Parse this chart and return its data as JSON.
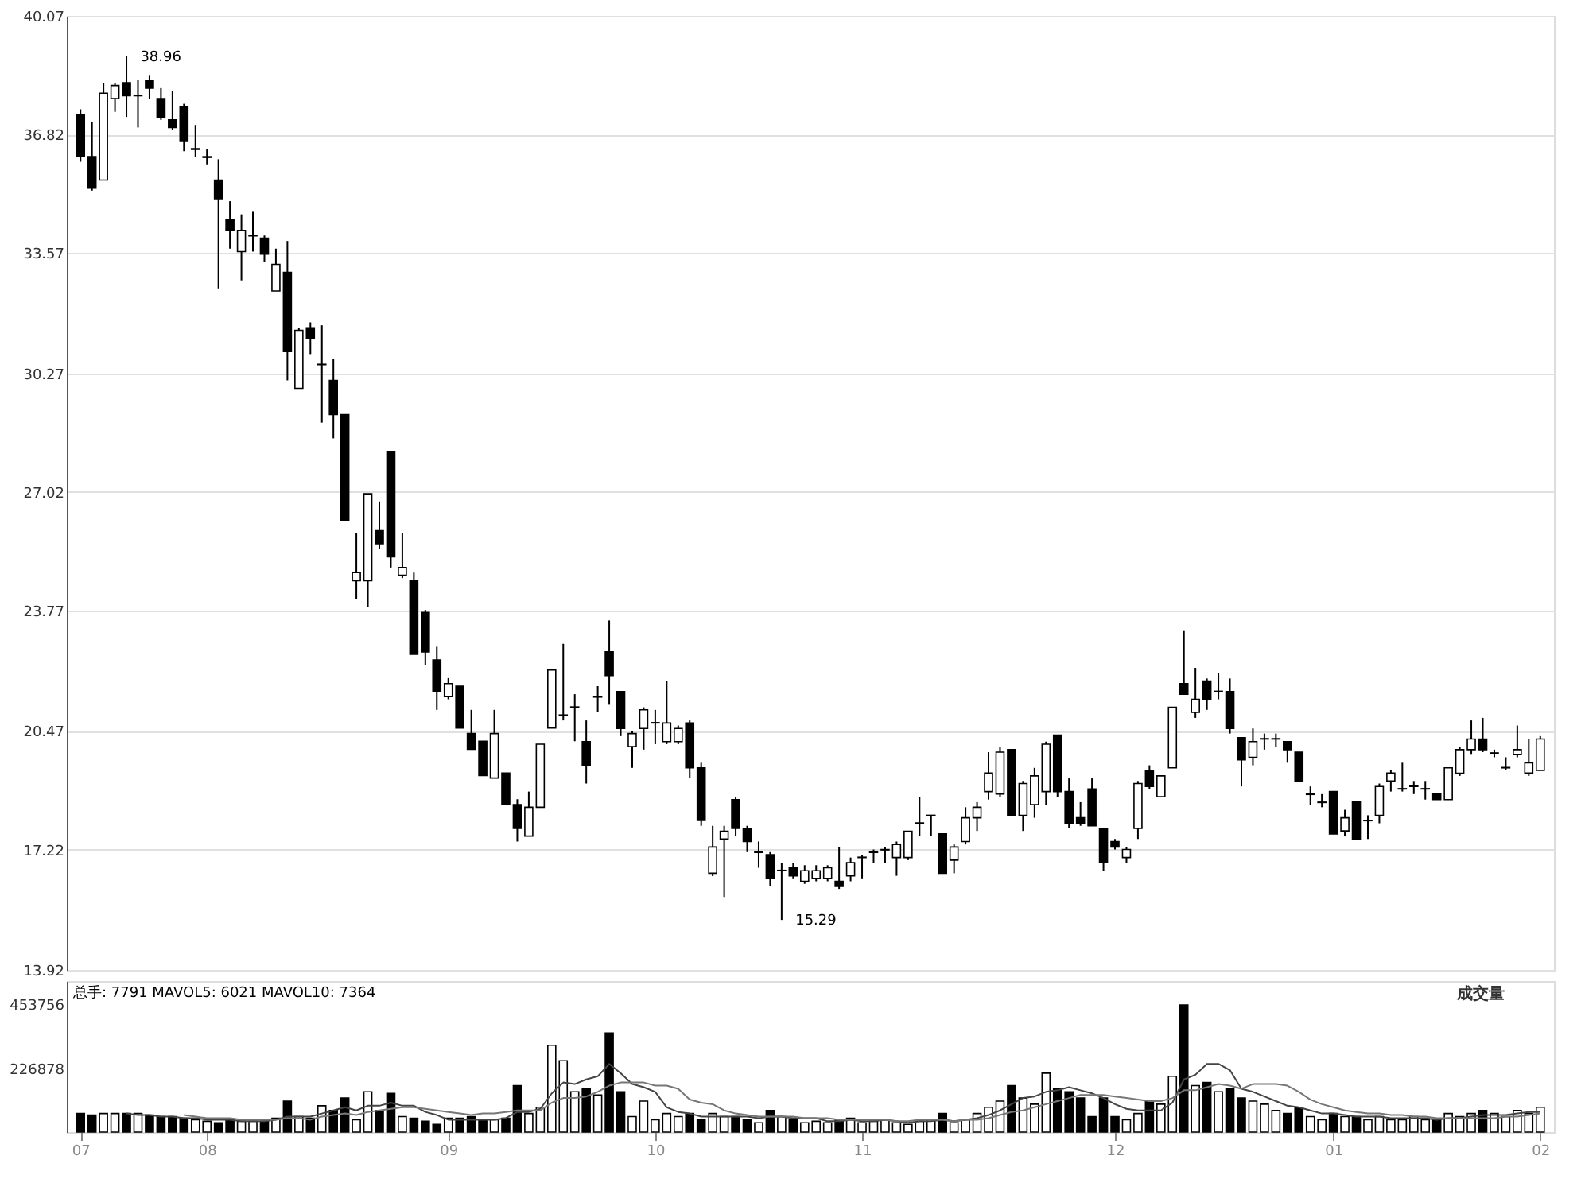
{
  "chart_data": [
    {
      "type": "candlestick",
      "categories": [
        "07",
        null,
        null,
        null,
        null,
        null,
        null,
        null,
        null,
        null,
        null,
        "08",
        null,
        null,
        null,
        null,
        null,
        null,
        null,
        null,
        null,
        null,
        null,
        null,
        null,
        null,
        null,
        null,
        null,
        null,
        null,
        null,
        "09",
        null,
        null,
        null,
        null,
        null,
        null,
        null,
        null,
        null,
        null,
        null,
        null,
        null,
        null,
        null,
        null,
        null,
        "10",
        null,
        null,
        null,
        null,
        null,
        null,
        null,
        null,
        null,
        null,
        null,
        null,
        null,
        null,
        null,
        null,
        null,
        "11",
        null,
        null,
        null,
        null,
        null,
        null,
        null,
        null,
        null,
        null,
        null,
        null,
        null,
        null,
        null,
        null,
        null,
        null,
        null,
        null,
        null,
        "12",
        null,
        null,
        null,
        null,
        null,
        null,
        null,
        null,
        null,
        null,
        null,
        null,
        null,
        null,
        null,
        null,
        null,
        null,
        "01",
        null,
        null,
        null,
        null,
        null,
        null,
        null,
        null,
        null,
        null,
        null,
        null,
        null,
        null,
        null,
        null,
        null,
        "02"
      ],
      "ohlc": [
        [
          37.37,
          37.51,
          36.07,
          36.21
        ],
        [
          36.21,
          37.15,
          35.28,
          35.35
        ],
        [
          35.57,
          38.24,
          35.57,
          37.95
        ],
        [
          37.8,
          38.24,
          37.44,
          38.16
        ],
        [
          38.24,
          38.96,
          37.3,
          37.88
        ],
        [
          37.88,
          38.31,
          37.01,
          37.89
        ],
        [
          38.31,
          38.45,
          37.8,
          38.09
        ],
        [
          37.8,
          38.09,
          37.22,
          37.3
        ],
        [
          37.22,
          38.02,
          36.94,
          37.01
        ],
        [
          37.59,
          37.66,
          36.36,
          36.65
        ],
        [
          36.41,
          37.08,
          36.21,
          36.43
        ],
        [
          36.19,
          36.43,
          36.0,
          36.21
        ],
        [
          35.57,
          36.14,
          32.6,
          35.06
        ],
        [
          34.48,
          34.99,
          33.69,
          34.19
        ],
        [
          33.61,
          34.63,
          32.82,
          34.19
        ],
        [
          34.04,
          34.7,
          33.61,
          34.05
        ],
        [
          33.98,
          34.05,
          33.33,
          33.54
        ],
        [
          32.53,
          33.69,
          32.53,
          33.26
        ],
        [
          33.04,
          33.9,
          30.08,
          30.87
        ],
        [
          29.86,
          31.52,
          29.86,
          31.45
        ],
        [
          31.52,
          31.67,
          30.8,
          31.23
        ],
        [
          30.51,
          31.59,
          28.92,
          30.52
        ],
        [
          30.08,
          30.66,
          28.49,
          29.14
        ],
        [
          29.14,
          29.14,
          26.25,
          26.25
        ],
        [
          24.59,
          25.89,
          24.09,
          24.81
        ],
        [
          24.59,
          26.97,
          23.87,
          26.97
        ],
        [
          25.96,
          26.76,
          25.46,
          25.6
        ],
        [
          28.13,
          28.13,
          24.95,
          25.24
        ],
        [
          24.74,
          25.89,
          24.66,
          24.95
        ],
        [
          24.59,
          24.81,
          22.57,
          22.57
        ],
        [
          23.72,
          23.79,
          22.28,
          22.64
        ],
        [
          22.42,
          22.78,
          21.05,
          21.56
        ],
        [
          21.41,
          21.92,
          21.34,
          21.77
        ],
        [
          21.7,
          21.7,
          20.55,
          20.55
        ],
        [
          20.4,
          21.05,
          19.97,
          19.97
        ],
        [
          20.19,
          20.19,
          19.25,
          19.25
        ],
        [
          19.18,
          21.05,
          19.18,
          20.4
        ],
        [
          19.32,
          19.32,
          18.45,
          18.45
        ],
        [
          18.45,
          18.6,
          17.44,
          17.8
        ],
        [
          17.59,
          18.81,
          17.59,
          18.38
        ],
        [
          18.38,
          20.11,
          18.38,
          20.11
        ],
        [
          20.55,
          22.14,
          20.55,
          22.14
        ],
        [
          20.9,
          22.86,
          20.76,
          20.91
        ],
        [
          21.12,
          21.48,
          20.19,
          21.13
        ],
        [
          20.18,
          20.76,
          19.03,
          19.53
        ],
        [
          21.4,
          21.7,
          20.98,
          21.41
        ],
        [
          22.64,
          23.5,
          21.19,
          21.99
        ],
        [
          21.55,
          21.55,
          20.33,
          20.54
        ],
        [
          20.04,
          20.47,
          19.46,
          20.4
        ],
        [
          20.54,
          21.12,
          19.96,
          21.05
        ],
        [
          20.69,
          21.05,
          20.11,
          20.7
        ],
        [
          20.18,
          21.84,
          20.11,
          20.69
        ],
        [
          20.18,
          20.62,
          20.11,
          20.54
        ],
        [
          20.69,
          20.76,
          19.17,
          19.46
        ],
        [
          19.46,
          19.6,
          17.87,
          18.02
        ],
        [
          16.57,
          17.87,
          16.49,
          17.29
        ],
        [
          17.51,
          17.87,
          15.92,
          17.72
        ],
        [
          18.59,
          18.67,
          17.58,
          17.8
        ],
        [
          17.8,
          17.87,
          17.15,
          17.44
        ],
        [
          17.14,
          17.44,
          16.72,
          17.15
        ],
        [
          17.08,
          17.15,
          16.21,
          16.43
        ],
        [
          16.64,
          16.86,
          15.29,
          16.65
        ],
        [
          16.72,
          16.86,
          16.43,
          16.5
        ],
        [
          16.35,
          16.79,
          16.28,
          16.64
        ],
        [
          16.43,
          16.79,
          16.35,
          16.64
        ],
        [
          16.43,
          16.79,
          16.35,
          16.72
        ],
        [
          16.35,
          17.29,
          16.14,
          16.21
        ],
        [
          16.5,
          17.0,
          16.35,
          16.86
        ],
        [
          17.0,
          17.08,
          16.43,
          17.01
        ],
        [
          17.14,
          17.22,
          16.86,
          17.15
        ],
        [
          17.21,
          17.29,
          16.86,
          17.22
        ],
        [
          17.0,
          17.44,
          16.5,
          17.36
        ],
        [
          17.0,
          17.72,
          16.93,
          17.72
        ],
        [
          17.94,
          18.67,
          17.58,
          17.95
        ],
        [
          18.15,
          18.16,
          17.58,
          18.16
        ],
        [
          17.65,
          17.65,
          16.57,
          16.57
        ],
        [
          16.93,
          17.36,
          16.57,
          17.29
        ],
        [
          17.44,
          18.38,
          17.36,
          18.09
        ],
        [
          18.09,
          18.52,
          17.73,
          18.38
        ],
        [
          18.81,
          19.89,
          18.59,
          19.32
        ],
        [
          18.74,
          20.04,
          18.67,
          19.89
        ],
        [
          19.96,
          19.96,
          18.16,
          18.16
        ],
        [
          18.16,
          19.1,
          17.73,
          19.03
        ],
        [
          18.45,
          19.46,
          18.09,
          19.24
        ],
        [
          18.81,
          20.18,
          18.45,
          20.11
        ],
        [
          20.36,
          20.36,
          18.67,
          18.81
        ],
        [
          18.81,
          19.17,
          17.8,
          17.94
        ],
        [
          18.09,
          18.52,
          17.87,
          17.94
        ],
        [
          18.88,
          19.17,
          17.87,
          17.87
        ],
        [
          17.8,
          17.8,
          16.64,
          16.86
        ],
        [
          17.44,
          17.51,
          17.22,
          17.29
        ],
        [
          17.0,
          17.29,
          16.86,
          17.22
        ],
        [
          17.8,
          19.1,
          17.51,
          19.03
        ],
        [
          19.39,
          19.53,
          18.88,
          18.95
        ],
        [
          18.67,
          19.24,
          18.67,
          19.24
        ],
        [
          19.46,
          21.12,
          19.46,
          21.12
        ],
        [
          21.77,
          23.21,
          21.48,
          21.48
        ],
        [
          20.98,
          22.2,
          20.83,
          21.34
        ],
        [
          21.84,
          21.91,
          21.05,
          21.34
        ],
        [
          21.55,
          22.06,
          21.34,
          21.56
        ],
        [
          21.55,
          21.91,
          20.4,
          20.54
        ],
        [
          20.29,
          20.29,
          18.95,
          19.68
        ],
        [
          19.75,
          20.54,
          19.53,
          20.18
        ],
        [
          20.25,
          20.4,
          19.96,
          20.26
        ],
        [
          20.25,
          20.4,
          20.04,
          20.26
        ],
        [
          20.18,
          20.18,
          19.6,
          19.96
        ],
        [
          19.89,
          19.89,
          19.1,
          19.1
        ],
        [
          18.73,
          18.95,
          18.45,
          18.74
        ],
        [
          18.51,
          18.74,
          18.38,
          18.52
        ],
        [
          18.81,
          18.81,
          17.65,
          17.65
        ],
        [
          17.73,
          18.31,
          17.58,
          18.09
        ],
        [
          18.52,
          18.52,
          17.51,
          17.51
        ],
        [
          18.01,
          18.16,
          17.51,
          18.02
        ],
        [
          18.16,
          19.03,
          17.94,
          18.95
        ],
        [
          19.1,
          19.39,
          18.81,
          19.32
        ],
        [
          18.88,
          19.6,
          18.81,
          18.89
        ],
        [
          18.95,
          19.1,
          18.74,
          18.96
        ],
        [
          18.88,
          19.1,
          18.59,
          18.89
        ],
        [
          18.74,
          18.74,
          18.59,
          18.59
        ],
        [
          18.59,
          19.46,
          18.59,
          19.46
        ],
        [
          19.31,
          20.04,
          19.24,
          19.96
        ],
        [
          19.96,
          20.76,
          19.82,
          20.25
        ],
        [
          20.25,
          20.83,
          19.89,
          19.96
        ],
        [
          19.86,
          19.96,
          19.75,
          19.87
        ],
        [
          19.46,
          19.75,
          19.39,
          19.47
        ],
        [
          19.82,
          20.62,
          19.75,
          19.96
        ],
        [
          19.32,
          20.25,
          19.24,
          19.6
        ],
        [
          19.39,
          20.33,
          19.39,
          20.25
        ]
      ],
      "ylim": [
        13.92,
        40.07
      ],
      "yticks": [
        13.92,
        17.22,
        20.47,
        23.77,
        27.02,
        30.27,
        33.57,
        36.82,
        40.07
      ],
      "grid": "y",
      "tick_labels": "y",
      "annotations": [
        "38.96",
        "15.29"
      ]
    },
    {
      "type": "bar",
      "categories": [
        "07",
        null,
        null,
        null,
        null,
        null,
        null,
        null,
        null,
        null,
        null,
        "08",
        null,
        null,
        null,
        null,
        null,
        null,
        null,
        null,
        null,
        null,
        null,
        null,
        null,
        null,
        null,
        null,
        null,
        null,
        null,
        null,
        "09",
        null,
        null,
        null,
        null,
        null,
        null,
        null,
        null,
        null,
        null,
        null,
        null,
        null,
        null,
        null,
        null,
        null,
        "10",
        null,
        null,
        null,
        null,
        null,
        null,
        null,
        null,
        null,
        null,
        null,
        null,
        null,
        null,
        null,
        null,
        null,
        "11",
        null,
        null,
        null,
        null,
        null,
        null,
        null,
        null,
        null,
        null,
        null,
        null,
        null,
        null,
        null,
        null,
        null,
        null,
        null,
        null,
        null,
        "12",
        null,
        null,
        null,
        null,
        null,
        null,
        null,
        null,
        null,
        null,
        null,
        null,
        null,
        null,
        null,
        null,
        null,
        null,
        "01",
        null,
        null,
        null,
        null,
        null,
        null,
        null,
        null,
        null,
        null,
        null,
        null,
        null,
        null,
        null,
        null,
        null,
        "02"
      ],
      "series": [
        {
          "values": [
            66000,
            60500,
            66000,
            66000,
            66000,
            66000,
            60500,
            55000,
            55000,
            49500,
            44000,
            38500,
            33000,
            44000,
            38500,
            38500,
            38500,
            49500,
            110000,
            55000,
            49500,
            93500,
            77000,
            121000,
            44000,
            143000,
            77000,
            137500,
            55000,
            49500,
            38500,
            27500,
            49500,
            49500,
            55000,
            44000,
            44000,
            49500,
            165000,
            66000,
            88000,
            308000,
            253000,
            143000,
            154000,
            132000,
            352000,
            143000,
            55000,
            110000,
            44000,
            66000,
            55000,
            66000,
            44000,
            66000,
            55000,
            55000,
            44000,
            33000,
            77000,
            55000,
            44000,
            33000,
            38500,
            33000,
            44000,
            49500,
            33000,
            38500,
            44000,
            33000,
            27500,
            38500,
            44000,
            66000,
            33000,
            44000,
            66000,
            88000,
            110000,
            165000,
            121000,
            99000,
            209000,
            154000,
            143000,
            121000,
            55000,
            121000,
            55000,
            44000,
            66000,
            110000,
            99000,
            198000,
            451000,
            165000,
            176000,
            143000,
            154000,
            121000,
            110000,
            99000,
            77000,
            66000,
            88000,
            55000,
            44000,
            66000,
            55000,
            55000,
            44000,
            55000,
            44000,
            44000,
            55000,
            44000,
            44000,
            66000,
            55000,
            66000,
            77000,
            66000,
            55000,
            77000,
            66000,
            88000
          ],
          "colors": [
            "#000000",
            "#000000",
            "#ffffff",
            "#ffffff",
            "#000000",
            "#ffffff",
            "#000000",
            "#000000",
            "#000000",
            "#000000",
            "#ffffff",
            "#ffffff",
            "#000000",
            "#000000",
            "#ffffff",
            "#ffffff",
            "#000000",
            "#ffffff",
            "#000000",
            "#ffffff",
            "#000000",
            "#ffffff",
            "#000000",
            "#000000",
            "#ffffff",
            "#ffffff",
            "#000000",
            "#000000",
            "#ffffff",
            "#000000",
            "#000000",
            "#000000",
            "#ffffff",
            "#000000",
            "#000000",
            "#000000",
            "#ffffff",
            "#000000",
            "#000000",
            "#ffffff",
            "#ffffff",
            "#ffffff",
            "#ffffff",
            "#ffffff",
            "#000000",
            "#ffffff",
            "#000000",
            "#000000",
            "#ffffff",
            "#ffffff",
            "#ffffff",
            "#ffffff",
            "#ffffff",
            "#000000",
            "#000000",
            "#ffffff",
            "#ffffff",
            "#000000",
            "#000000",
            "#ffffff",
            "#000000",
            "#ffffff",
            "#000000",
            "#ffffff",
            "#ffffff",
            "#ffffff",
            "#000000",
            "#ffffff",
            "#ffffff",
            "#ffffff",
            "#ffffff",
            "#ffffff",
            "#ffffff",
            "#ffffff",
            "#ffffff",
            "#000000",
            "#ffffff",
            "#ffffff",
            "#ffffff",
            "#ffffff",
            "#ffffff",
            "#000000",
            "#ffffff",
            "#ffffff",
            "#ffffff",
            "#000000",
            "#000000",
            "#000000",
            "#000000",
            "#000000",
            "#000000",
            "#ffffff",
            "#ffffff",
            "#000000",
            "#ffffff",
            "#ffffff",
            "#000000",
            "#ffffff",
            "#000000",
            "#ffffff",
            "#000000",
            "#000000",
            "#ffffff",
            "#ffffff",
            "#ffffff",
            "#000000",
            "#000000",
            "#ffffff",
            "#ffffff",
            "#000000",
            "#ffffff",
            "#000000",
            "#ffffff",
            "#ffffff",
            "#ffffff",
            "#ffffff",
            "#ffffff",
            "#ffffff",
            "#000000",
            "#ffffff",
            "#ffffff",
            "#ffffff",
            "#000000",
            "#ffffff",
            "#ffffff",
            "#ffffff",
            "#ffffff",
            "#ffffff"
          ]
        },
        {
          "type": "line",
          "color": "#444444",
          "values": [
            null,
            null,
            null,
            null,
            66000,
            60500,
            60500,
            55000,
            55000,
            49500,
            49500,
            44000,
            44000,
            44000,
            38500,
            38500,
            38500,
            44000,
            55000,
            55000,
            55000,
            66000,
            77000,
            88000,
            77000,
            93500,
            93500,
            104500,
            93500,
            93500,
            71500,
            60500,
            44000,
            44000,
            44000,
            44000,
            44000,
            49500,
            71500,
            71500,
            82500,
            137500,
            176000,
            170500,
            187000,
            198000,
            242000,
            209000,
            170500,
            159500,
            143000,
            88000,
            71500,
            66000,
            55000,
            55000,
            55000,
            55000,
            55000,
            49500,
            55000,
            55000,
            49500,
            49500,
            49500,
            38500,
            38500,
            44000,
            38500,
            38500,
            44000,
            38500,
            33000,
            38500,
            38500,
            44000,
            38500,
            44000,
            49500,
            60500,
            77000,
            99000,
            121000,
            126500,
            143000,
            148500,
            159500,
            148500,
            137500,
            121000,
            99000,
            82500,
            77000,
            77000,
            77000,
            104500,
            187000,
            203500,
            242000,
            242000,
            220000,
            154000,
            143000,
            126500,
            110000,
            93500,
            88000,
            77000,
            66000,
            66000,
            60500,
            55000,
            55000,
            55000,
            49500,
            49500,
            49500,
            49500,
            44000,
            49500,
            49500,
            55000,
            60500,
            60500,
            60500,
            66000,
            71500,
            71500
          ]
        },
        {
          "type": "line",
          "color": "#777777",
          "values": [
            null,
            null,
            null,
            null,
            null,
            null,
            null,
            null,
            null,
            60500,
            55000,
            49500,
            49500,
            49500,
            44000,
            44000,
            44000,
            44000,
            49500,
            49500,
            44000,
            55000,
            60500,
            66000,
            60500,
            71500,
            77000,
            82500,
            88000,
            88000,
            82500,
            77000,
            71500,
            66000,
            60500,
            66000,
            66000,
            71500,
            77000,
            77000,
            77000,
            104500,
            121000,
            121000,
            126500,
            143000,
            165000,
            176000,
            176000,
            176000,
            165000,
            165000,
            154000,
            115500,
            104500,
            99000,
            77000,
            66000,
            60500,
            55000,
            55000,
            55000,
            55000,
            49500,
            49500,
            49500,
            44000,
            44000,
            44000,
            44000,
            44000,
            38500,
            38500,
            44000,
            44000,
            44000,
            38500,
            44000,
            44000,
            49500,
            60500,
            71500,
            77000,
            88000,
            99000,
            110000,
            121000,
            132000,
            132000,
            132000,
            126500,
            121000,
            115500,
            110000,
            110000,
            121000,
            148500,
            148500,
            159500,
            170500,
            165000,
            154000,
            170500,
            170500,
            170500,
            165000,
            143000,
            115500,
            99000,
            88000,
            77000,
            71500,
            66000,
            66000,
            60500,
            60500,
            55000,
            55000,
            49500,
            49500,
            49500,
            49500,
            49500,
            49500,
            55000,
            55000,
            60500,
            66000
          ]
        }
      ],
      "ylim": [
        0,
        536000
      ],
      "yticks": [
        226878,
        453756
      ],
      "annotations": [
        "总手: 7791 MAVOL5: 6021 MAVOL10: 7364",
        "成交量"
      ]
    }
  ]
}
